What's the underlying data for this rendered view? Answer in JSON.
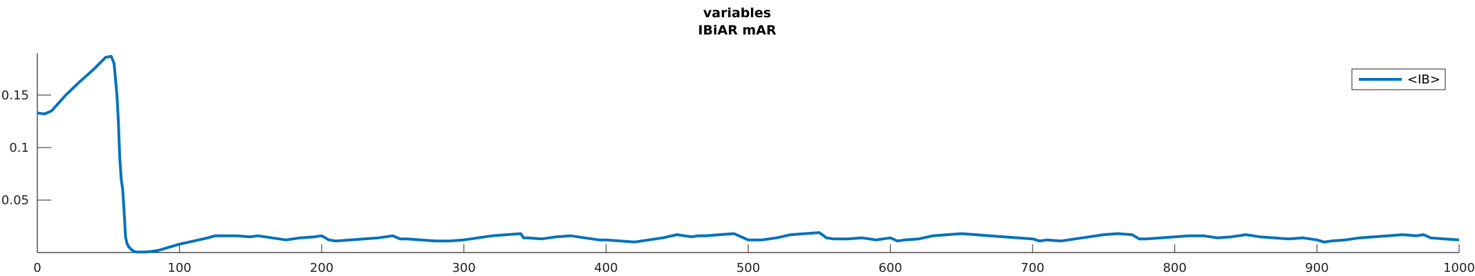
{
  "chart_data": {
    "type": "line",
    "title": "variables",
    "subtitle": "IBiAR mAR",
    "xlabel": "",
    "ylabel": "",
    "xlim": [
      0,
      1000
    ],
    "ylim": [
      0,
      0.19
    ],
    "xticks": [
      0,
      100,
      200,
      300,
      400,
      500,
      600,
      700,
      800,
      900,
      1000
    ],
    "yticks": [
      0.05,
      0.1,
      0.15
    ],
    "ytick_labels": [
      "0.05",
      "0.1",
      "0.15"
    ],
    "grid": false,
    "legend_position": "top-right",
    "series": [
      {
        "name": "<IB>",
        "color": "#0072BD",
        "x": [
          0,
          5,
          10,
          20,
          30,
          40,
          48,
          52,
          54,
          56,
          57,
          58,
          59,
          60,
          61,
          62,
          63,
          64,
          66,
          68,
          70,
          75,
          80,
          85,
          90,
          100,
          110,
          120,
          125,
          130,
          140,
          150,
          155,
          165,
          175,
          185,
          195,
          200,
          205,
          210,
          220,
          230,
          240,
          250,
          255,
          260,
          270,
          280,
          290,
          300,
          310,
          320,
          330,
          340,
          342,
          345,
          355,
          365,
          375,
          385,
          395,
          400,
          410,
          420,
          430,
          440,
          450,
          460,
          465,
          470,
          480,
          490,
          500,
          510,
          520,
          530,
          540,
          550,
          555,
          560,
          570,
          580,
          590,
          600,
          605,
          610,
          620,
          630,
          640,
          650,
          660,
          670,
          680,
          690,
          700,
          705,
          710,
          720,
          730,
          740,
          750,
          760,
          770,
          775,
          780,
          790,
          800,
          810,
          820,
          830,
          840,
          850,
          860,
          870,
          880,
          890,
          900,
          905,
          910,
          920,
          930,
          940,
          950,
          960,
          970,
          975,
          980,
          990,
          1000
        ],
        "y": [
          0.133,
          0.132,
          0.135,
          0.15,
          0.163,
          0.175,
          0.186,
          0.187,
          0.18,
          0.15,
          0.125,
          0.09,
          0.07,
          0.06,
          0.04,
          0.015,
          0.009,
          0.006,
          0.003,
          0.001,
          0.0005,
          0.0005,
          0.001,
          0.002,
          0.004,
          0.008,
          0.011,
          0.014,
          0.016,
          0.016,
          0.016,
          0.015,
          0.016,
          0.014,
          0.012,
          0.014,
          0.015,
          0.016,
          0.012,
          0.011,
          0.012,
          0.013,
          0.014,
          0.016,
          0.013,
          0.013,
          0.012,
          0.011,
          0.011,
          0.012,
          0.014,
          0.016,
          0.017,
          0.018,
          0.014,
          0.014,
          0.013,
          0.015,
          0.016,
          0.014,
          0.012,
          0.012,
          0.011,
          0.01,
          0.012,
          0.014,
          0.017,
          0.015,
          0.016,
          0.016,
          0.017,
          0.018,
          0.012,
          0.012,
          0.014,
          0.017,
          0.018,
          0.019,
          0.014,
          0.013,
          0.013,
          0.014,
          0.012,
          0.014,
          0.011,
          0.012,
          0.013,
          0.016,
          0.017,
          0.018,
          0.017,
          0.016,
          0.015,
          0.014,
          0.013,
          0.011,
          0.012,
          0.011,
          0.013,
          0.015,
          0.017,
          0.018,
          0.017,
          0.013,
          0.013,
          0.014,
          0.015,
          0.016,
          0.016,
          0.014,
          0.015,
          0.017,
          0.015,
          0.014,
          0.013,
          0.014,
          0.012,
          0.01,
          0.011,
          0.012,
          0.014,
          0.015,
          0.016,
          0.017,
          0.016,
          0.017,
          0.014,
          0.013,
          0.012
        ]
      }
    ]
  }
}
